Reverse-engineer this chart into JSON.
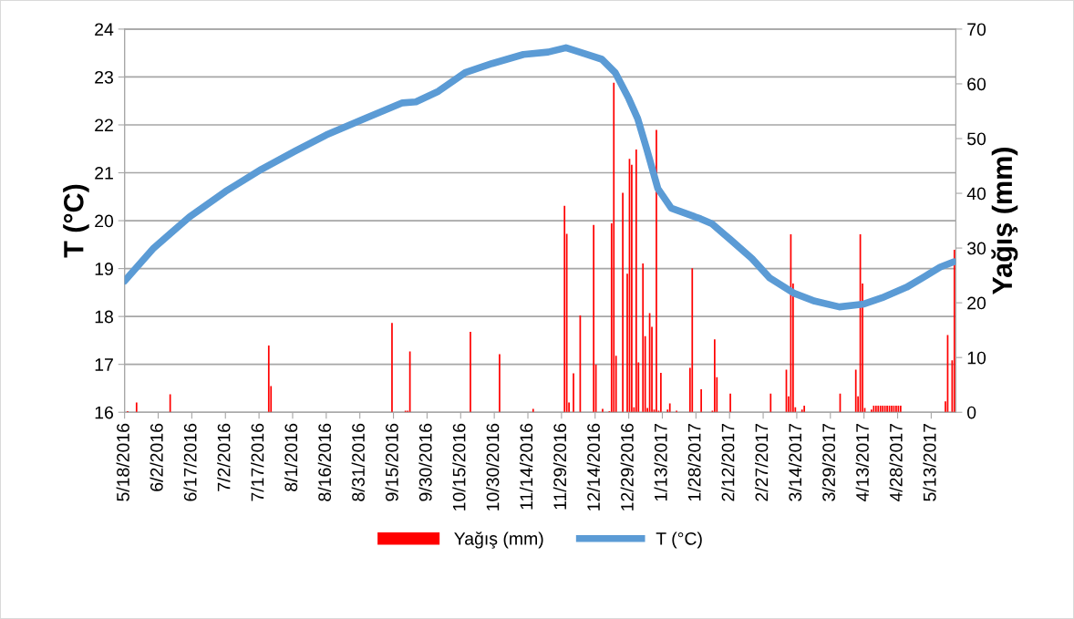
{
  "chart_data": {
    "type": "bar",
    "ylabel": "T (°C)",
    "y2label": "Yağış (mm)",
    "xlim": [
      "2016-05-18",
      "2017-05-24"
    ],
    "xticks": [
      {
        "value": "2016-05-18",
        "label": "5/18/2016"
      },
      {
        "value": "2016-06-02",
        "label": "6/2/2016"
      },
      {
        "value": "2016-06-17",
        "label": "6/17/2016"
      },
      {
        "value": "2016-07-02",
        "label": "7/2/2016"
      },
      {
        "value": "2016-07-17",
        "label": "7/17/2016"
      },
      {
        "value": "2016-08-01",
        "label": "8/1/2016"
      },
      {
        "value": "2016-08-16",
        "label": "8/16/2016"
      },
      {
        "value": "2016-08-31",
        "label": "8/31/2016"
      },
      {
        "value": "2016-09-15",
        "label": "9/15/2016"
      },
      {
        "value": "2016-09-30",
        "label": "9/30/2016"
      },
      {
        "value": "2016-10-15",
        "label": "10/15/2016"
      },
      {
        "value": "2016-10-30",
        "label": "10/30/2016"
      },
      {
        "value": "2016-11-14",
        "label": "11/14/2016"
      },
      {
        "value": "2016-11-29",
        "label": "11/29/2016"
      },
      {
        "value": "2016-12-14",
        "label": "12/14/2016"
      },
      {
        "value": "2016-12-29",
        "label": "12/29/2016"
      },
      {
        "value": "2017-01-13",
        "label": "1/13/2017"
      },
      {
        "value": "2017-01-28",
        "label": "1/28/2017"
      },
      {
        "value": "2017-02-12",
        "label": "2/12/2017"
      },
      {
        "value": "2017-02-27",
        "label": "2/27/2017"
      },
      {
        "value": "2017-03-14",
        "label": "3/14/2017"
      },
      {
        "value": "2017-03-29",
        "label": "3/29/2017"
      },
      {
        "value": "2017-04-13",
        "label": "4/13/2017"
      },
      {
        "value": "2017-04-28",
        "label": "4/28/2017"
      },
      {
        "value": "2017-05-13",
        "label": "5/13/2017"
      }
    ],
    "ylim": [
      16,
      24
    ],
    "yticks": [
      16,
      17,
      18,
      19,
      20,
      21,
      22,
      23,
      24
    ],
    "y2lim": [
      0,
      70
    ],
    "y2ticks": [
      0,
      10,
      20,
      30,
      40,
      50,
      60,
      70
    ],
    "grid": "y",
    "legend": "bottom",
    "series": [
      {
        "name": "Yağış (mm)",
        "axis": "y2",
        "color": "#ff0000",
        "x": [
          "2016-05-19",
          "2016-05-23",
          "2016-06-07",
          "2016-07-21",
          "2016-07-22",
          "2016-09-14",
          "2016-09-20",
          "2016-09-21",
          "2016-09-22",
          "2016-10-19",
          "2016-11-01",
          "2016-11-16",
          "2016-11-30",
          "2016-12-01",
          "2016-12-02",
          "2016-12-04",
          "2016-12-07",
          "2016-12-13",
          "2016-12-14",
          "2016-12-17",
          "2016-12-20",
          "2016-12-21",
          "2016-12-22",
          "2016-12-23",
          "2016-12-26",
          "2016-12-28",
          "2016-12-29",
          "2016-12-30",
          "2016-12-31",
          "2017-01-01",
          "2017-01-02",
          "2017-01-04",
          "2017-01-05",
          "2017-01-06",
          "2017-01-07",
          "2017-01-08",
          "2017-01-09",
          "2017-01-10",
          "2017-01-11",
          "2017-01-12",
          "2017-01-15",
          "2017-01-16",
          "2017-01-19",
          "2017-01-25",
          "2017-01-26",
          "2017-01-30",
          "2017-02-04",
          "2017-02-05",
          "2017-02-06",
          "2017-02-12",
          "2017-03-02",
          "2017-03-09",
          "2017-03-10",
          "2017-03-11",
          "2017-03-12",
          "2017-03-13",
          "2017-03-16",
          "2017-03-17",
          "2017-04-02",
          "2017-04-09",
          "2017-04-10",
          "2017-04-11",
          "2017-04-12",
          "2017-04-13",
          "2017-04-16",
          "2017-04-17",
          "2017-04-18",
          "2017-04-19",
          "2017-04-20",
          "2017-04-21",
          "2017-04-22",
          "2017-04-23",
          "2017-04-24",
          "2017-04-25",
          "2017-04-26",
          "2017-04-27",
          "2017-04-28",
          "2017-04-29",
          "2017-05-19",
          "2017-05-20",
          "2017-05-22",
          "2017-05-23"
        ],
        "values": [
          0.2,
          1.8,
          3.3,
          12.2,
          4.8,
          16.3,
          0.3,
          0.3,
          11.1,
          14.7,
          10.6,
          0.6,
          37.7,
          32.6,
          1.8,
          7.1,
          17.7,
          34.2,
          8.7,
          0.6,
          0.2,
          34.5,
          60.2,
          10.3,
          40.1,
          25.3,
          46.3,
          45.2,
          0.9,
          48,
          9.1,
          27.2,
          13.9,
          0.8,
          18.1,
          15.6,
          0.5,
          51.6,
          0.3,
          7.2,
          0.5,
          1.6,
          0.3,
          8.1,
          26.3,
          4.2,
          0.3,
          13.3,
          6.4,
          3.4,
          3.4,
          7.8,
          2.9,
          32.5,
          23.5,
          0.9,
          0.5,
          1.2,
          3.4,
          7.8,
          2.9,
          32.5,
          23.5,
          0.8,
          0.5,
          1.2,
          1.2,
          1.2,
          1.2,
          1.2,
          1.2,
          1.2,
          1.2,
          1.2,
          1.2,
          1.2,
          1.2,
          1.2,
          2.0,
          14.1,
          9.5,
          29.7
        ]
      },
      {
        "name": "T (°C)",
        "type": "line",
        "axis": "y",
        "color": "#5b9bd5",
        "x": [
          "2016-05-18",
          "2016-05-31",
          "2016-06-16",
          "2016-07-02",
          "2016-07-18",
          "2016-08-02",
          "2016-08-16",
          "2016-09-02",
          "2016-09-19",
          "2016-09-25",
          "2016-10-05",
          "2016-10-17",
          "2016-10-29",
          "2016-11-12",
          "2016-11-23",
          "2016-12-01",
          "2016-12-09",
          "2016-12-17",
          "2016-12-23",
          "2016-12-29",
          "2017-01-02",
          "2017-01-06",
          "2017-01-11",
          "2017-01-17",
          "2017-01-30",
          "2017-02-04",
          "2017-02-12",
          "2017-02-22",
          "2017-03-02",
          "2017-03-13",
          "2017-03-22",
          "2017-04-02",
          "2017-04-13",
          "2017-04-21",
          "2017-05-02",
          "2017-05-10",
          "2017-05-17",
          "2017-05-23"
        ],
        "values": [
          18.74,
          19.43,
          20.08,
          20.61,
          21.07,
          21.45,
          21.79,
          22.13,
          22.46,
          22.48,
          22.7,
          23.09,
          23.28,
          23.47,
          23.52,
          23.61,
          23.49,
          23.37,
          23.09,
          22.55,
          22.13,
          21.5,
          20.67,
          20.26,
          20.04,
          19.94,
          19.62,
          19.21,
          18.8,
          18.48,
          18.32,
          18.2,
          18.26,
          18.39,
          18.61,
          18.83,
          19.03,
          19.14
        ]
      }
    ]
  }
}
